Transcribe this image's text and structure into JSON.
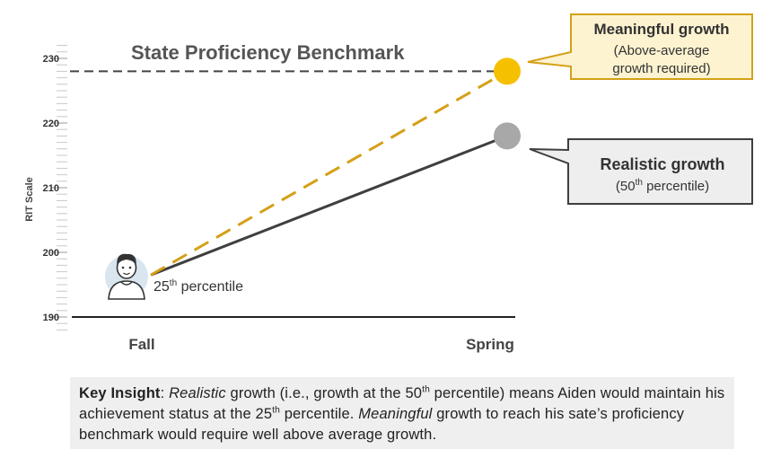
{
  "chart_data": {
    "type": "line",
    "title": "State Proficiency Benchmark",
    "ylabel": "RIT Scale",
    "categories": [
      "Fall",
      "Spring"
    ],
    "ylim": [
      190,
      232
    ],
    "yticks": [
      190,
      200,
      210,
      220,
      230
    ],
    "grid": false,
    "benchmark": {
      "label": "State Proficiency Benchmark",
      "value": 228
    },
    "series": [
      {
        "name": "Meaningful growth",
        "values": [
          196.5,
          228
        ],
        "color": "#d4a017",
        "dashed": true
      },
      {
        "name": "Realistic growth",
        "values": [
          196.5,
          218
        ],
        "color": "#3f3f3f",
        "dashed": false
      }
    ],
    "start_point": {
      "label_base": "25",
      "label_sup": "th",
      "label_rest": " percentile"
    },
    "callouts": {
      "meaningful": {
        "title": "Meaningful growth",
        "line1": "(Above-average",
        "line2": "growth required)",
        "border": "#d4a017",
        "fill": "#fdf3d0"
      },
      "realistic": {
        "title": "Realistic growth",
        "line1_base": "(50",
        "line1_sup": "th",
        "line1_rest": " percentile)",
        "border": "#3f3f3f",
        "fill": "#eeeeee"
      }
    },
    "colors": {
      "meaningful_dot": "#f5c000",
      "realistic_dot": "#a8a8a8",
      "axis": "#222222",
      "minor_tick": "#c8c8c8",
      "benchmark_line": "#444444"
    }
  },
  "key_insight": {
    "label": "Key Insight",
    "p1": ": ",
    "p2": "Realistic",
    "p3": " growth (i.e., growth at the 50",
    "p3_sup": "th",
    "p4": " percentile) means Aiden would maintain his achievement status at the 25",
    "p4_sup": "th",
    "p5": " percentile. ",
    "p6": "Meaningful",
    "p7": " growth to reach his sate’s proficiency benchmark would require well above average growth."
  }
}
